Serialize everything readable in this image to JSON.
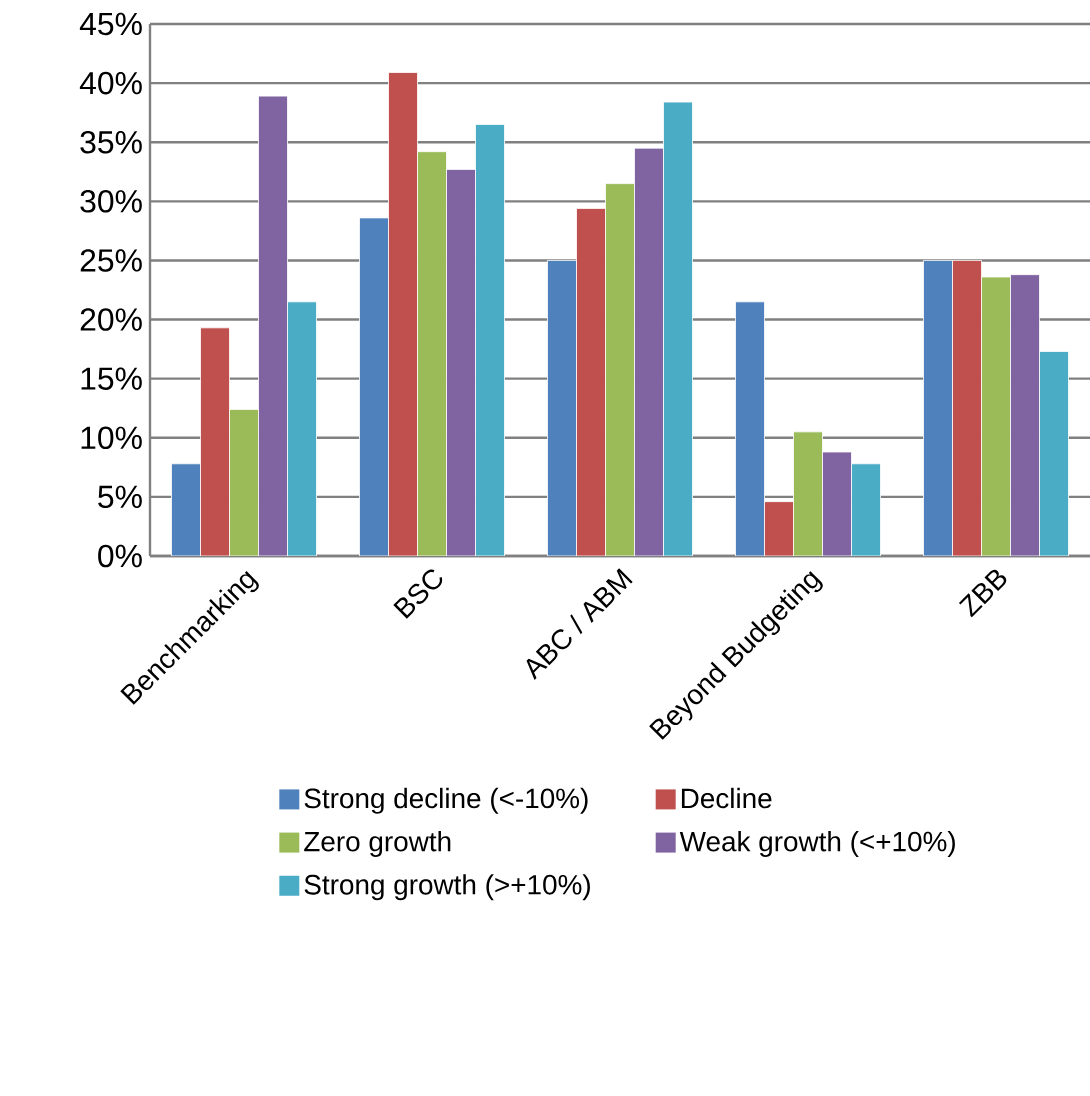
{
  "chart_data": {
    "type": "bar",
    "categories": [
      "Benchmarking",
      "BSC",
      "ABC / ABM",
      "Beyond Budgeting",
      "ZBB"
    ],
    "series": [
      {
        "name": "Strong decline (<-10%)",
        "color": "#4f81bd",
        "values": [
          7.8,
          28.6,
          25,
          21.5,
          25
        ]
      },
      {
        "name": "Decline",
        "color": "#c0504d",
        "values": [
          19.3,
          40.9,
          29.4,
          4.6,
          25
        ]
      },
      {
        "name": "Zero growth",
        "color": "#9bbb59",
        "values": [
          12.4,
          34.2,
          31.5,
          10.5,
          23.6
        ]
      },
      {
        "name": "Weak growth (<+10%)",
        "color": "#8064a2",
        "values": [
          38.9,
          32.7,
          34.5,
          8.8,
          23.8
        ]
      },
      {
        "name": "Strong growth (>+10%)",
        "color": "#4bacc6",
        "values": [
          21.5,
          36.5,
          38.4,
          7.8,
          17.3
        ]
      }
    ],
    "ylim": [
      0,
      45
    ],
    "yticks": [
      {
        "value": 0,
        "label": "0%"
      },
      {
        "value": 5,
        "label": "5%"
      },
      {
        "value": 10,
        "label": "10%"
      },
      {
        "value": 15,
        "label": "15%"
      },
      {
        "value": 20,
        "label": "20%"
      },
      {
        "value": 25,
        "label": "25%"
      },
      {
        "value": 30,
        "label": "30%"
      },
      {
        "value": 35,
        "label": "35%"
      },
      {
        "value": 40,
        "label": "40%"
      },
      {
        "value": 45,
        "label": "45%"
      }
    ],
    "grid": "y",
    "legend": "bottom"
  }
}
